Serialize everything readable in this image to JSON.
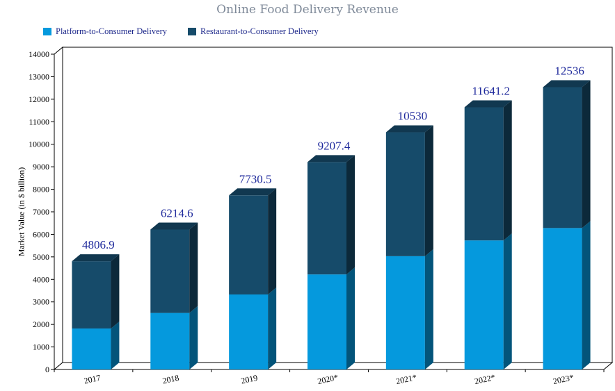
{
  "chart_data": {
    "type": "bar",
    "stacked": true,
    "title": "Online Food Delivery Revenue",
    "xlabel": "",
    "ylabel": "Market Value (in $ billion)",
    "ylim": [
      0,
      14000
    ],
    "yticks": [
      0,
      1000,
      2000,
      3000,
      4000,
      5000,
      6000,
      7000,
      8000,
      9000,
      10000,
      11000,
      12000,
      13000,
      14000
    ],
    "categories": [
      "2017",
      "2018",
      "2019",
      "2020*",
      "2021*",
      "2022*",
      "2023*"
    ],
    "series": [
      {
        "name": "Platform-to-Consumer Delivery",
        "color": "#0599dd",
        "values": [
          1820,
          2510,
          3330,
          4220,
          5030,
          5730,
          6280
        ]
      },
      {
        "name": "Restaurant-to-Consumer Delivery",
        "color": "#164b6a",
        "values": [
          2986.9,
          3704.6,
          4400.5,
          4987.4,
          5500,
          5911.2,
          6256
        ]
      }
    ],
    "totals": [
      4806.9,
      6214.6,
      7730.5,
      9207.4,
      10530,
      11641.2,
      12536
    ],
    "legend_position": "top-left",
    "grid": false
  }
}
